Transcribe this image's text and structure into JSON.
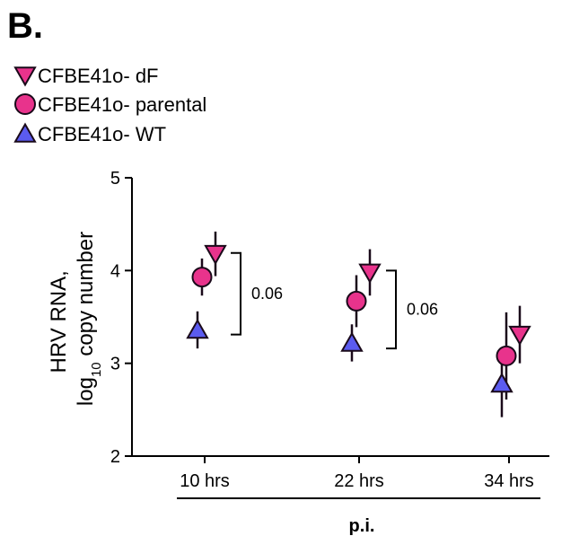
{
  "panel_label": "B.",
  "colors": {
    "dF": "#e8338c",
    "parental": "#e8338c",
    "WT": "#5b5bef",
    "outline": "#1a0a1a"
  },
  "chart_data": {
    "type": "scatter",
    "title": "",
    "ylabel_line1": "HRV RNA,",
    "ylabel_line2_prefix": "log",
    "ylabel_line2_sub": "10",
    "ylabel_line2_suffix": " copy number",
    "xlabel": "p.i.",
    "ylim": [
      2,
      5
    ],
    "yticks": [
      2,
      3,
      4,
      5
    ],
    "categories": [
      "10 hrs",
      "22 hrs",
      "34 hrs"
    ],
    "legend_position": "top-left",
    "series": [
      {
        "name": "CFBE41o- dF",
        "key": "dF",
        "marker": "triangle-down",
        "values": [
          4.18,
          3.98,
          3.31
        ],
        "err": [
          0.24,
          0.25,
          0.31
        ]
      },
      {
        "name": "CFBE41o- parental",
        "key": "parental",
        "marker": "circle",
        "values": [
          3.93,
          3.67,
          3.08
        ],
        "err": [
          0.2,
          0.28,
          0.47
        ]
      },
      {
        "name": "CFBE41o- WT",
        "key": "WT",
        "marker": "triangle-up",
        "values": [
          3.36,
          3.22,
          2.78
        ],
        "err": [
          0.2,
          0.2,
          0.36
        ]
      }
    ],
    "annotations": [
      {
        "category": 0,
        "from": 3.31,
        "to": 4.19,
        "label": "0.06"
      },
      {
        "category": 1,
        "from": 3.16,
        "to": 4.0,
        "label": "0.06"
      }
    ]
  }
}
